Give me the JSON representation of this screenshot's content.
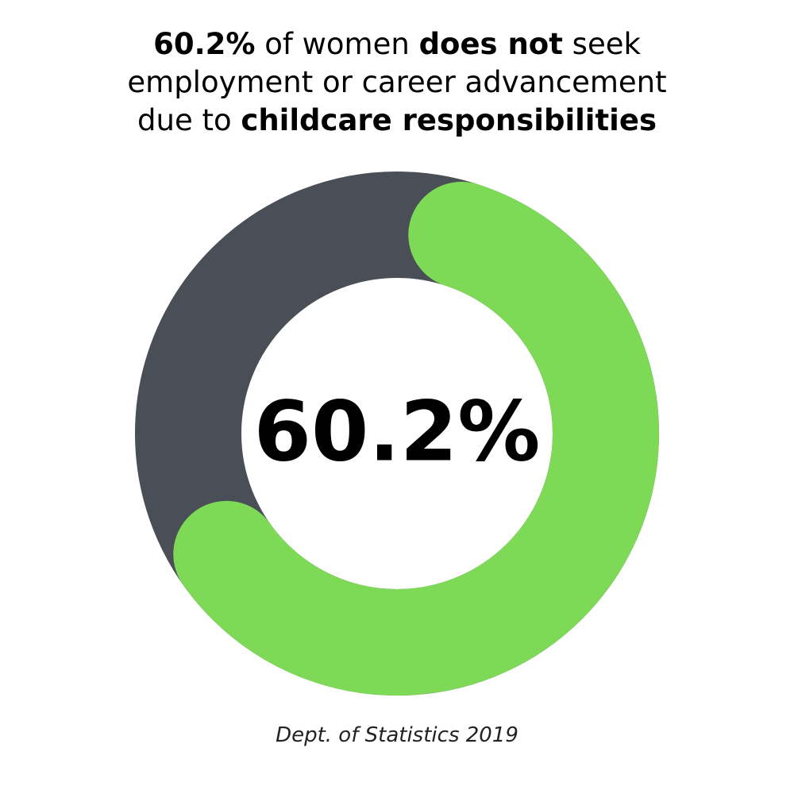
{
  "title": {
    "line1": {
      "bold_value": "60.2%",
      "text_a": " of women ",
      "bold_a": "does not",
      "text_b": " seek"
    },
    "line2": "employment or career advancement",
    "line3": {
      "text_a": "due to ",
      "bold_a": "childcare responsibilities"
    }
  },
  "source": "Dept. of Statistics 2019",
  "chart_data": {
    "type": "pie",
    "variant": "donut",
    "center_label": "60.2%",
    "slices": [
      {
        "value": 60.2,
        "color": "#7ed957"
      },
      {
        "value": 39.8,
        "color": "#4a4f57"
      }
    ]
  }
}
